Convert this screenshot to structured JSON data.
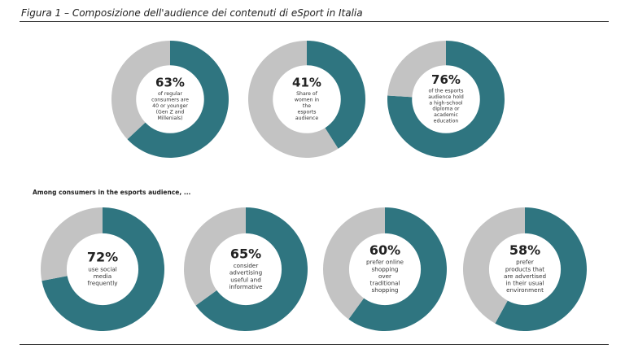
{
  "figure": {
    "caption": "Figura 1 – Composizione dell'audience dei contenuti di eSport in Italia",
    "section_title": "Among consumers in the esports audience, ..."
  },
  "colors": {
    "primary": "#2f7580",
    "remainder": "#c3c3c3",
    "center": "#ffffff"
  },
  "chart_data": [
    {
      "type": "pie",
      "donut": true,
      "values": [
        63,
        37
      ],
      "label": "63%",
      "description": [
        "of regular",
        "consumers are",
        "40 or younger",
        "(Gen Z and",
        "Millenials)"
      ]
    },
    {
      "type": "pie",
      "donut": true,
      "values": [
        41,
        59
      ],
      "label": "41%",
      "description": [
        "Share of",
        "women in",
        "the",
        "esports",
        "audience"
      ]
    },
    {
      "type": "pie",
      "donut": true,
      "values": [
        76,
        24
      ],
      "label": "76%",
      "description": [
        "of the esports",
        "audience hold",
        "a high-school",
        "diploma or",
        "academic",
        "education"
      ]
    },
    {
      "type": "pie",
      "donut": true,
      "values": [
        72,
        28
      ],
      "label": "72%",
      "description": [
        "use social",
        "media",
        "frequently"
      ]
    },
    {
      "type": "pie",
      "donut": true,
      "values": [
        65,
        35
      ],
      "label": "65%",
      "description": [
        "consider",
        "advertising",
        "useful and",
        "informative"
      ]
    },
    {
      "type": "pie",
      "donut": true,
      "values": [
        60,
        40
      ],
      "label": "60%",
      "description": [
        "prefer online",
        "shopping",
        "over",
        "traditional",
        "shopping"
      ]
    },
    {
      "type": "pie",
      "donut": true,
      "values": [
        58,
        42
      ],
      "label": "58%",
      "description": [
        "prefer",
        "products that",
        "are advertised",
        "in their usual",
        "environment"
      ]
    }
  ]
}
